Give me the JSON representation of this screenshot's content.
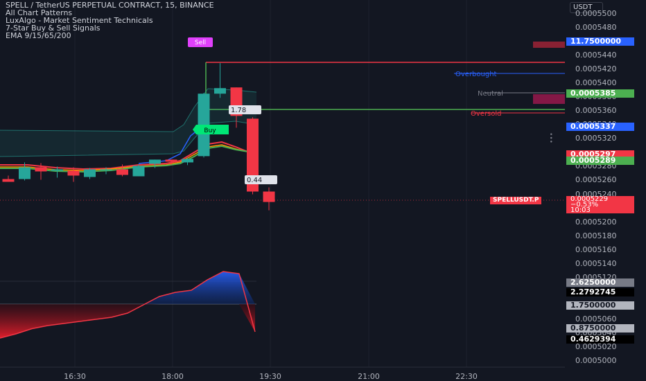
{
  "header": {
    "title": "SPELL / TetherUS PERPETUAL CONTRACT, 15, BINANCE",
    "indicators": [
      "All Chart Patterns",
      "LuxAlgo - Market Sentiment Technicals",
      "7-Star Buy & Sell Signals",
      "EMA 9/15/65/200"
    ]
  },
  "currency_button": "USDT",
  "price_axis_ticks": [
    "0.0005500",
    "0.0005480",
    "0.0005440",
    "0.0005420",
    "0.0005400",
    "0.0005380",
    "0.0005360",
    "0.0005340",
    "0.0005320",
    "0.0005280",
    "0.0005260",
    "0.0005240",
    "0.0005200",
    "0.0005180",
    "0.0005160",
    "0.0005140",
    "0.0005120",
    "0.0005100",
    "0.0005080",
    "0.0005060",
    "0.0005040",
    "0.0005020",
    "0.0005000"
  ],
  "time_axis_ticks": [
    "16:30",
    "18:00",
    "19:30",
    "21:00",
    "22:30"
  ],
  "price_labels": {
    "upper_level": "11.7500000",
    "neutral_value": "0.0005385",
    "mid_value": "0.0005337",
    "red_value": "0.0005297",
    "green_value": "0.0005289",
    "symbol": "SPELLUSDT.P",
    "last_price": "0.0005229",
    "change": "−0.53%",
    "countdown": "10:03"
  },
  "oscillator_labels": [
    "2.6250000",
    "2.2792745",
    "1.7500000",
    "0.8750000",
    "0.4629394"
  ],
  "chart_labels": {
    "overbought": "Overbought",
    "neutral": "Neutral",
    "oversold": "Oversold",
    "sell_signal": "Sell",
    "buy_signal": "Buy",
    "value_1": "1.78",
    "value_2": "0.44"
  },
  "colors": {
    "background": "#131722",
    "up": "#26a69a",
    "down": "#f23645",
    "blue": "#2962ff",
    "green": "#4caf50",
    "pink": "#e040fb"
  },
  "chart_data": {
    "type": "candlestick",
    "ylim": [
      0.0005,
      0.00055
    ],
    "x": [
      "16:30",
      "18:00",
      "19:30",
      "21:00",
      "22:30"
    ],
    "candles": [
      {
        "o": 0.0005262,
        "h": 0.0005267,
        "l": 0.0005258,
        "c": 0.0005258
      },
      {
        "o": 0.0005262,
        "h": 0.0005286,
        "l": 0.000526,
        "c": 0.0005279
      },
      {
        "o": 0.0005279,
        "h": 0.0005285,
        "l": 0.0005261,
        "c": 0.0005273
      },
      {
        "o": 0.0005274,
        "h": 0.000528,
        "l": 0.0005264,
        "c": 0.0005276
      },
      {
        "o": 0.0005274,
        "h": 0.0005279,
        "l": 0.0005258,
        "c": 0.0005267
      },
      {
        "o": 0.0005265,
        "h": 0.0005278,
        "l": 0.0005262,
        "c": 0.0005276
      },
      {
        "o": 0.0005276,
        "h": 0.0005279,
        "l": 0.0005269,
        "c": 0.0005276
      },
      {
        "o": 0.0005276,
        "h": 0.0005283,
        "l": 0.0005266,
        "c": 0.0005268
      },
      {
        "o": 0.0005266,
        "h": 0.0005283,
        "l": 0.0005266,
        "c": 0.0005281
      },
      {
        "o": 0.0005284,
        "h": 0.000529,
        "l": 0.0005278,
        "c": 0.000529
      },
      {
        "o": 0.000529,
        "h": 0.000529,
        "l": 0.0005282,
        "c": 0.0005287
      },
      {
        "o": 0.0005286,
        "h": 0.0005293,
        "l": 0.0005282,
        "c": 0.0005291
      },
      {
        "o": 0.0005295,
        "h": 0.0005386,
        "l": 0.0005293,
        "c": 0.0005385
      },
      {
        "o": 0.0005385,
        "h": 0.0005429,
        "l": 0.0005379,
        "c": 0.0005393
      },
      {
        "o": 0.0005394,
        "h": 0.0005394,
        "l": 0.0005336,
        "c": 0.0005353
      },
      {
        "o": 0.0005349,
        "h": 0.0005351,
        "l": 0.000524,
        "c": 0.0005244
      },
      {
        "o": 0.0005244,
        "h": 0.000525,
        "l": 0.0005217,
        "c": 0.0005229
      }
    ],
    "oscillator": [
      0.0,
      0.2,
      0.45,
      0.6,
      0.7,
      0.8,
      0.9,
      1.0,
      1.2,
      1.6,
      2.0,
      2.2,
      2.3,
      2.8,
      3.2,
      3.1,
      0.3
    ]
  }
}
